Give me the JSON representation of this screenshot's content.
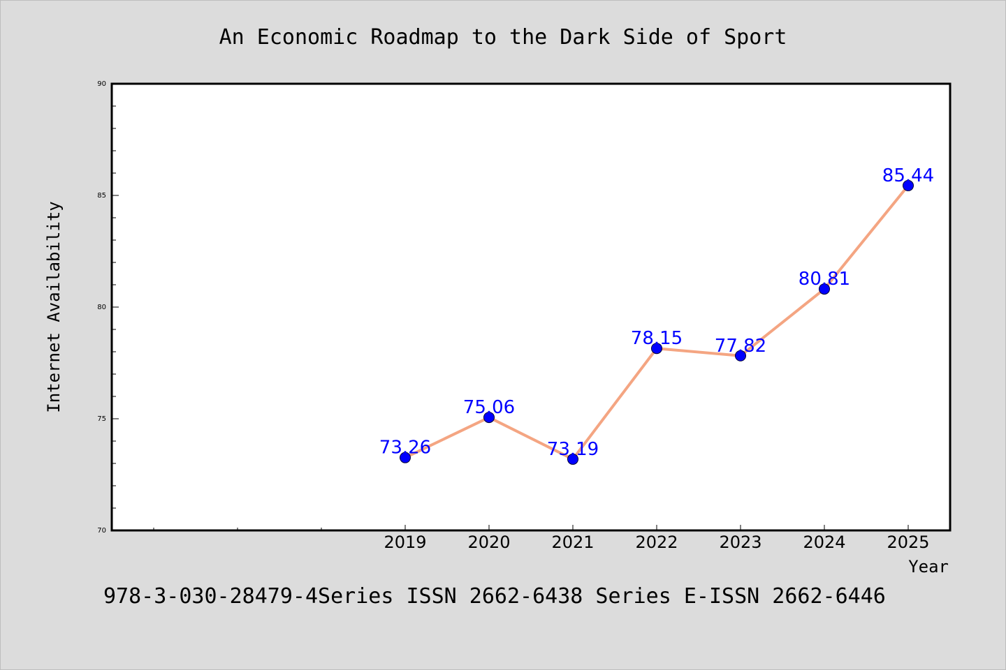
{
  "chart_data": {
    "type": "line",
    "title": "An Economic Roadmap to the Dark Side of Sport",
    "xlabel": "Year",
    "ylabel": "Internet Availability",
    "footer": "978-3-030-28479-4Series ISSN 2662-6438 Series E-ISSN 2662-6446",
    "categories": [
      "2019",
      "2020",
      "2021",
      "2022",
      "2023",
      "2024",
      "2025"
    ],
    "series": [
      {
        "values": [
          73.26,
          75.06,
          73.19,
          78.15,
          77.82,
          80.81,
          85.44
        ]
      }
    ],
    "data_labels": [
      "73.26",
      "75.06",
      "73.19",
      "78.15",
      "77.82",
      "80.81",
      "85.44"
    ],
    "ylim": [
      70,
      90
    ],
    "y_ticks": [
      "70",
      "75",
      "80",
      "85",
      "90"
    ],
    "grid": false,
    "colors": {
      "line": "#f4a582",
      "marker": "#0000ff",
      "label": "#0000ff",
      "background": "#dcdcdc",
      "plot_background": "#ffffff"
    }
  }
}
